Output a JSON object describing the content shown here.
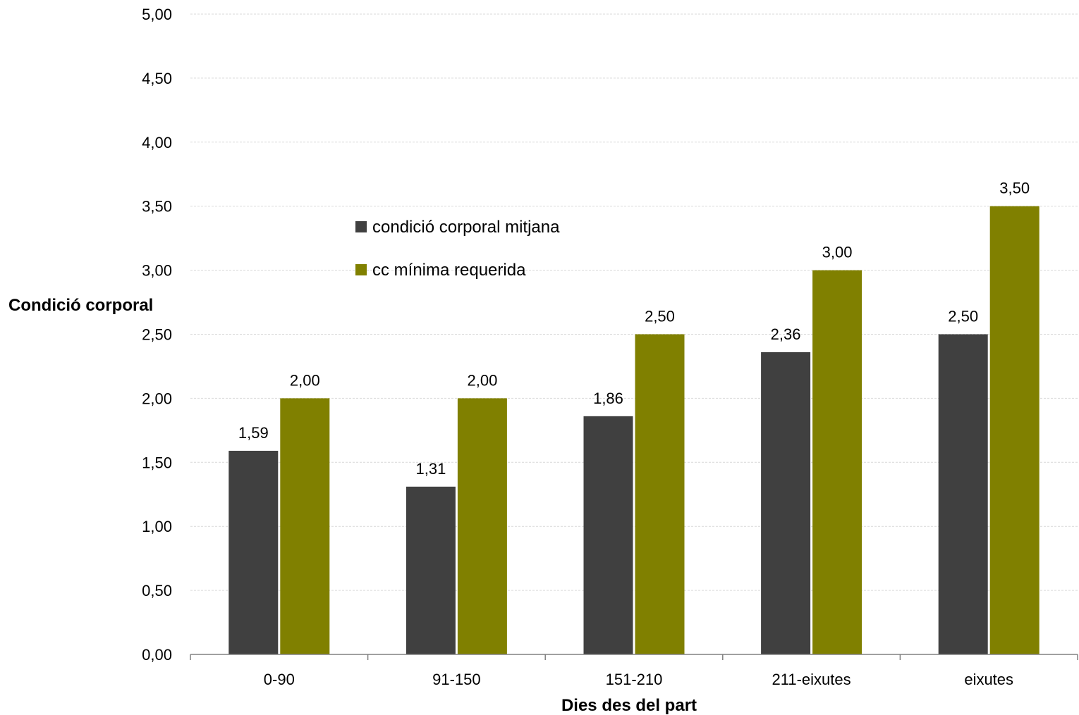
{
  "chart_data": {
    "type": "bar",
    "title": "",
    "xlabel": "Dies des del part",
    "ylabel": "Condició corporal",
    "categories": [
      "0-90",
      "91-150",
      "151-210",
      "211-eixutes",
      "eixutes"
    ],
    "series": [
      {
        "name": "condició corporal mitjana",
        "color": "#404040",
        "values": [
          1.59,
          1.31,
          1.86,
          2.36,
          2.5
        ],
        "labels": [
          "1,59",
          "1,31",
          "1,86",
          "2,36",
          "2,50"
        ]
      },
      {
        "name": "cc mínima requerida",
        "color": "#808000",
        "values": [
          2.0,
          2.0,
          2.5,
          3.0,
          3.5
        ],
        "labels": [
          "2,00",
          "2,00",
          "2,50",
          "3,00",
          "3,50"
        ]
      }
    ],
    "ylim": [
      0,
      5
    ],
    "yticks": [
      0,
      0.5,
      1,
      1.5,
      2,
      2.5,
      3,
      3.5,
      4,
      4.5,
      5
    ],
    "ytick_labels": [
      "0,00",
      "0,50",
      "1,00",
      "1,50",
      "2,00",
      "2,50",
      "3,00",
      "3,50",
      "4,00",
      "4,50",
      "5,00"
    ],
    "grid": true,
    "gridline_color": "#d9d9d9",
    "legend_position": "upper-left inside plot"
  }
}
